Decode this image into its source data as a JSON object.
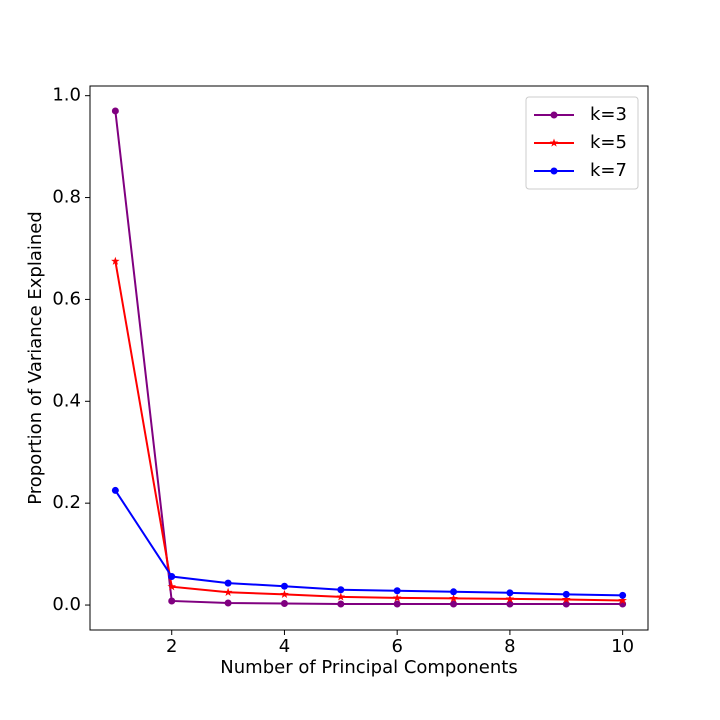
{
  "chart_data": {
    "type": "line",
    "x_label": "Number of Principal Components",
    "y_label": "Proportion of Variance Explained",
    "x": [
      1,
      2,
      3,
      4,
      5,
      6,
      7,
      8,
      9,
      10
    ],
    "series": [
      {
        "name": "k=3",
        "color": "#800080",
        "marker": "circle",
        "values": [
          0.97,
          0.008,
          0.004,
          0.003,
          0.002,
          0.002,
          0.002,
          0.002,
          0.002,
          0.002
        ]
      },
      {
        "name": "k=5",
        "color": "#ff0000",
        "marker": "star",
        "values": [
          0.675,
          0.036,
          0.025,
          0.021,
          0.016,
          0.014,
          0.013,
          0.012,
          0.011,
          0.009
        ]
      },
      {
        "name": "k=7",
        "color": "#0000ff",
        "marker": "circle",
        "values": [
          0.225,
          0.056,
          0.043,
          0.037,
          0.03,
          0.028,
          0.026,
          0.024,
          0.021,
          0.019
        ]
      }
    ],
    "xlim": [
      0.55,
      10.45
    ],
    "ylim": [
      -0.049,
      1.019
    ],
    "xticks": [
      2,
      4,
      6,
      8,
      10
    ],
    "yticks": [
      {
        "value": 0,
        "label": "0.0"
      },
      0.2,
      0.4,
      0.6,
      0.8,
      {
        "value": 1,
        "label": "1.0"
      }
    ],
    "legend": "upper right",
    "grid": false
  }
}
